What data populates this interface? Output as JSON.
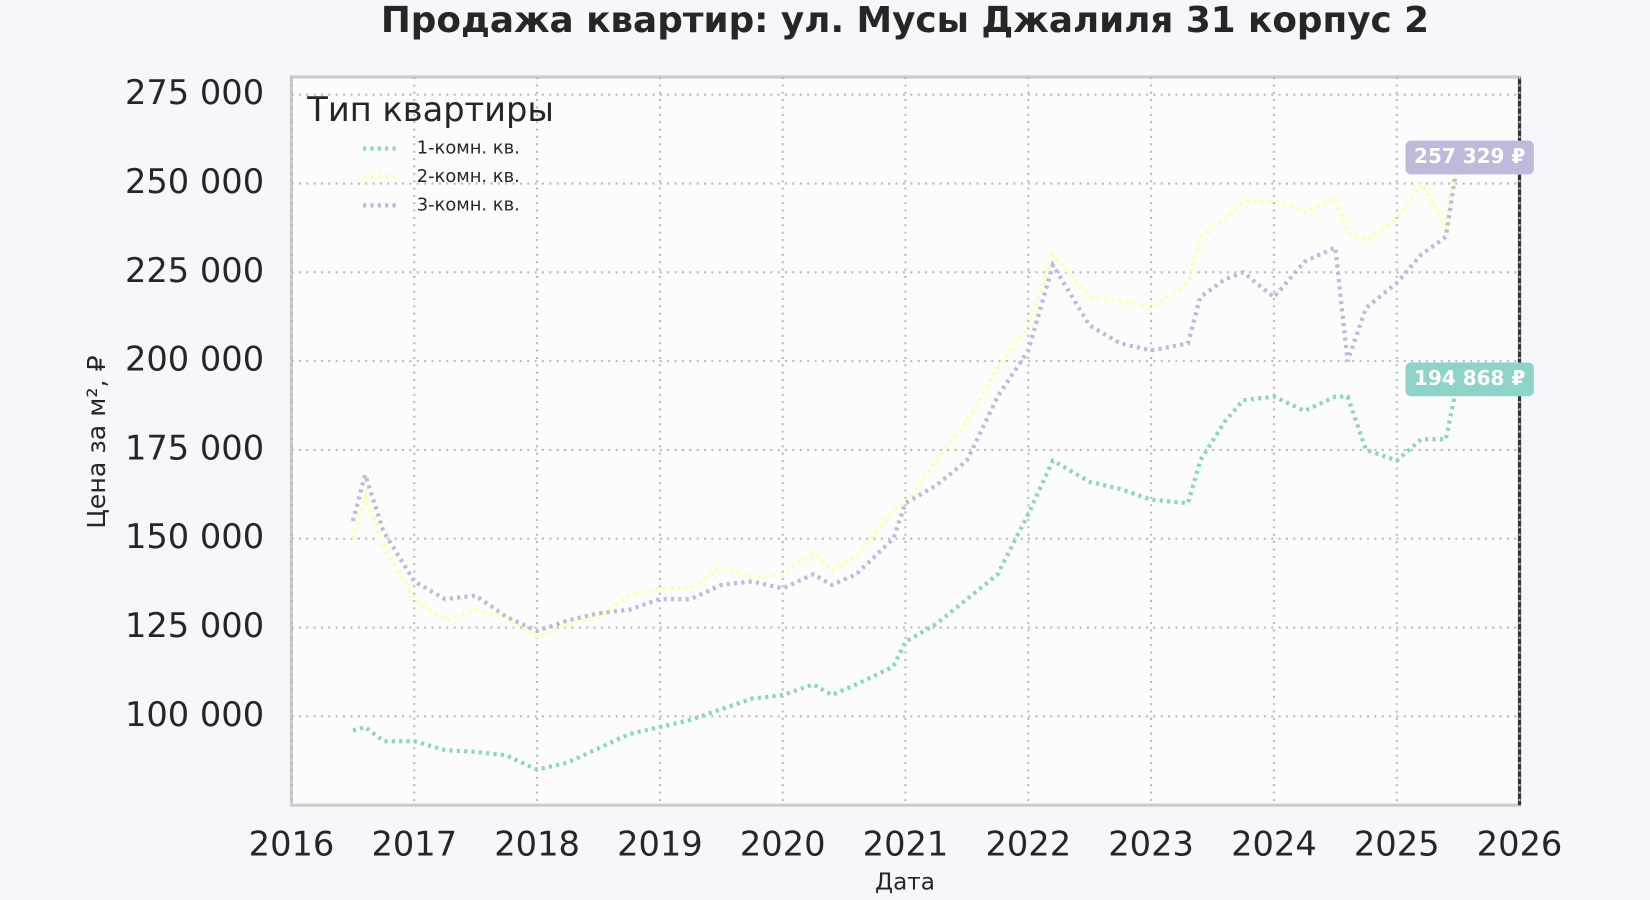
{
  "chart_data": {
    "type": "line",
    "title": "Продажа квартир: ул. Мусы Джалиля 31 корпус 2",
    "x_label": "Дата",
    "y_label": "Цена за м², ₽",
    "legend_title": "Тип квартиры",
    "legend_position": "upper left",
    "grid": true,
    "line_style": "dotted",
    "x": [
      2016.5,
      2016.6,
      2016.75,
      2017,
      2017.25,
      2017.5,
      2017.75,
      2018,
      2018.25,
      2018.5,
      2018.75,
      2019,
      2019.25,
      2019.5,
      2019.75,
      2020,
      2020.25,
      2020.4,
      2020.6,
      2020.9,
      2021,
      2021.25,
      2021.5,
      2021.75,
      2022,
      2022.2,
      2022.5,
      2022.75,
      2023,
      2023.3,
      2023.4,
      2023.6,
      2023.75,
      2024,
      2024.25,
      2024.5,
      2024.6,
      2024.75,
      2025,
      2025.2,
      2025.4,
      2025.5
    ],
    "series": [
      {
        "name": "1-комн. кв.",
        "color": "#8dd3c7",
        "values": [
          96000,
          97000,
          93000,
          93000,
          90500,
          90000,
          89000,
          85000,
          87000,
          91000,
          95000,
          97000,
          99000,
          102000,
          105000,
          106000,
          109000,
          106000,
          109000,
          114000,
          121000,
          126000,
          133000,
          140000,
          157000,
          172000,
          166000,
          164000,
          161000,
          160000,
          172000,
          183000,
          189000,
          190000,
          186000,
          190000,
          190000,
          175000,
          172000,
          178000,
          178000,
          194868
        ]
      },
      {
        "name": "2-комн. кв.",
        "color": "#ffffb3",
        "values": [
          150000,
          162000,
          148000,
          133000,
          127000,
          130000,
          128000,
          122000,
          126000,
          128000,
          134000,
          136000,
          136000,
          142000,
          139000,
          140000,
          146000,
          141000,
          145000,
          158000,
          160000,
          172000,
          183000,
          198000,
          210000,
          230000,
          218000,
          217000,
          215000,
          222000,
          235000,
          240000,
          245000,
          245000,
          242000,
          246000,
          236000,
          234000,
          240000,
          250000,
          238000,
          262000
        ]
      },
      {
        "name": "3-комн. кв.",
        "color": "#bebada",
        "values": [
          155000,
          168000,
          152000,
          138000,
          133000,
          134000,
          128000,
          124000,
          127000,
          129000,
          130000,
          133000,
          133000,
          137000,
          138000,
          136000,
          140000,
          137000,
          140000,
          150000,
          160000,
          165000,
          172000,
          190000,
          203000,
          227000,
          210000,
          205000,
          203000,
          205000,
          218000,
          223000,
          225000,
          218000,
          228000,
          232000,
          200000,
          215000,
          222000,
          230000,
          235000,
          257329
        ]
      }
    ],
    "annotations": [
      {
        "text": "257 329 ₽",
        "x": 2025.5,
        "y": 257329,
        "color": "#bebada"
      },
      {
        "text": "194 868 ₽",
        "x": 2025.5,
        "y": 194868,
        "color": "#8dd3c7"
      }
    ],
    "xlim": [
      2016,
      2026
    ],
    "xticks": [
      2016,
      2017,
      2018,
      2019,
      2020,
      2021,
      2022,
      2023,
      2024,
      2025,
      2026
    ],
    "ylim": [
      75000,
      280000
    ],
    "yticks": [
      {
        "value": 100000,
        "label": "100 000"
      },
      {
        "value": 125000,
        "label": "125 000"
      },
      {
        "value": 150000,
        "label": "150 000"
      },
      {
        "value": 175000,
        "label": "175 000"
      },
      {
        "value": 200000,
        "label": "200 000"
      },
      {
        "value": 225000,
        "label": "225 000"
      },
      {
        "value": 250000,
        "label": "250 000"
      },
      {
        "value": 275000,
        "label": "275 000"
      }
    ]
  }
}
